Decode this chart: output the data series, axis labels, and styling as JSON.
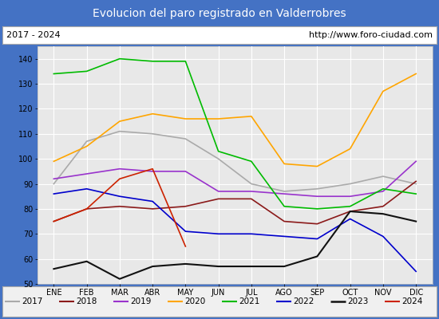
{
  "title": "Evolucion del paro registrado en Valderrobres",
  "subtitle_left": "2017 - 2024",
  "subtitle_right": "http://www.foro-ciudad.com",
  "months": [
    "ENE",
    "FEB",
    "MAR",
    "ABR",
    "MAY",
    "JUN",
    "JUL",
    "AGO",
    "SEP",
    "OCT",
    "NOV",
    "DIC"
  ],
  "ylim": [
    50,
    145
  ],
  "yticks": [
    50,
    60,
    70,
    80,
    90,
    100,
    110,
    120,
    130,
    140
  ],
  "series": {
    "2017": {
      "color": "#aaaaaa",
      "linestyle": "-",
      "linewidth": 1.2,
      "values": [
        90,
        107,
        111,
        110,
        108,
        100,
        90,
        87,
        88,
        90,
        93,
        90
      ]
    },
    "2018": {
      "color": "#8b1a1a",
      "linestyle": "-",
      "linewidth": 1.2,
      "values": [
        75,
        80,
        81,
        80,
        81,
        84,
        84,
        75,
        74,
        79,
        81,
        91
      ]
    },
    "2019": {
      "color": "#9933cc",
      "linestyle": "-",
      "linewidth": 1.2,
      "values": [
        92,
        94,
        96,
        95,
        95,
        87,
        87,
        86,
        85,
        85,
        87,
        99
      ]
    },
    "2020": {
      "color": "#ffa500",
      "linestyle": "-",
      "linewidth": 1.2,
      "values": [
        99,
        105,
        115,
        118,
        116,
        116,
        117,
        98,
        97,
        104,
        127,
        134
      ]
    },
    "2021": {
      "color": "#00bb00",
      "linestyle": "-",
      "linewidth": 1.2,
      "values": [
        134,
        135,
        140,
        139,
        139,
        103,
        99,
        81,
        80,
        81,
        88,
        86
      ]
    },
    "2022": {
      "color": "#0000cc",
      "linestyle": "-",
      "linewidth": 1.2,
      "values": [
        86,
        88,
        85,
        83,
        71,
        70,
        70,
        69,
        68,
        76,
        69,
        55
      ]
    },
    "2023": {
      "color": "#111111",
      "linestyle": "-",
      "linewidth": 1.5,
      "values": [
        56,
        59,
        52,
        57,
        58,
        57,
        57,
        57,
        61,
        79,
        78,
        75
      ]
    },
    "2024": {
      "color": "#cc2200",
      "linestyle": "-",
      "linewidth": 1.2,
      "values": [
        75,
        80,
        92,
        96,
        65,
        null,
        null,
        null,
        null,
        null,
        null,
        null
      ]
    }
  },
  "title_bg_color": "#4472c4",
  "title_fg_color": "#ffffff",
  "plot_bg_color": "#e8e8e8",
  "grid_color": "#ffffff",
  "border_color": "#4472c4",
  "legend_bg": "#f0f0f0"
}
